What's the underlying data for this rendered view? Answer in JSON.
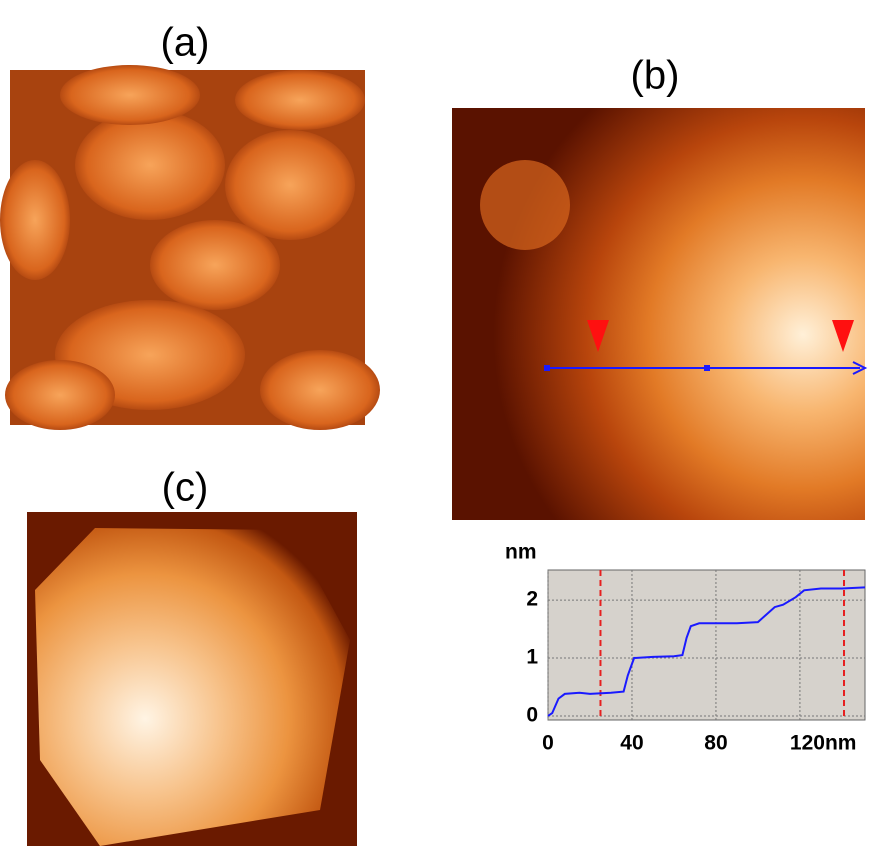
{
  "panels": {
    "a": "(a)",
    "b": "(b)",
    "c": "(c)"
  },
  "chart_data": {
    "type": "line",
    "ylabel": "nm",
    "x": [
      0,
      2,
      5,
      8,
      15,
      20,
      30,
      36,
      38,
      41,
      50,
      60,
      64,
      66,
      68,
      72,
      80,
      90,
      100,
      104,
      108,
      112,
      118,
      122,
      130,
      140,
      151
    ],
    "series": [
      {
        "color": "#1a1aff",
        "values": [
          0,
          0.05,
          0.3,
          0.38,
          0.4,
          0.38,
          0.4,
          0.42,
          0.7,
          1.0,
          1.02,
          1.03,
          1.05,
          1.35,
          1.55,
          1.6,
          1.6,
          1.6,
          1.62,
          1.75,
          1.88,
          1.92,
          2.05,
          2.17,
          2.2,
          2.2,
          2.22
        ]
      }
    ],
    "markers": [
      25,
      141
    ],
    "marker_color": "#e62020",
    "xlim": [
      0,
      151
    ],
    "ylim": [
      -0.07,
      2.52
    ],
    "xticks": [
      0,
      40,
      80,
      {
        "value": 120,
        "label": "120nm"
      }
    ],
    "yticks": [
      0,
      1,
      2
    ],
    "grid": true
  }
}
